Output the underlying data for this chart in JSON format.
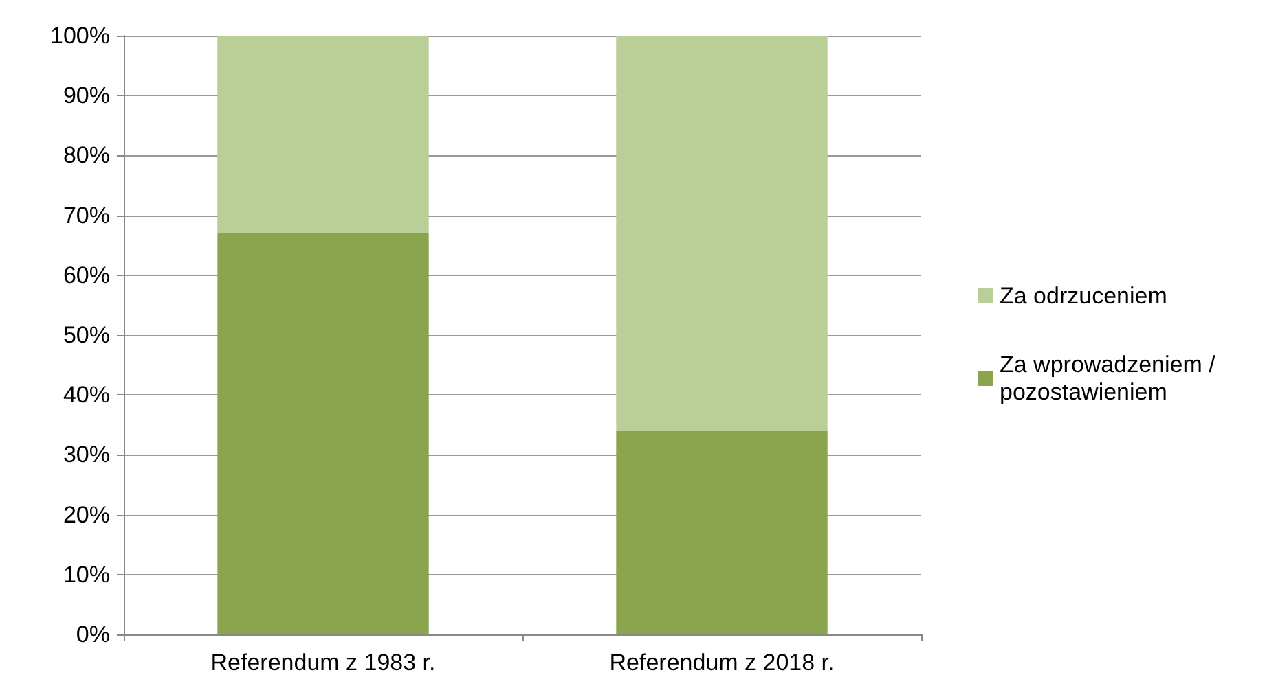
{
  "chart_data": {
    "type": "bar",
    "stacked": true,
    "categories": [
      "Referendum z 1983 r.",
      "Referendum z 2018 r."
    ],
    "series": [
      {
        "name": "Za wprowadzeniem /pozostawieniem",
        "color": "#8aa54e",
        "values": [
          67,
          34
        ]
      },
      {
        "name": "Za odrzuceniem",
        "color": "#bace97",
        "values": [
          33,
          66
        ]
      }
    ],
    "ylim": [
      0,
      100
    ],
    "yticks": [
      {
        "value": 0,
        "label": "0%"
      },
      {
        "value": 10,
        "label": "10%"
      },
      {
        "value": 20,
        "label": "20%"
      },
      {
        "value": 30,
        "label": "30%"
      },
      {
        "value": 40,
        "label": "40%"
      },
      {
        "value": 50,
        "label": "50%"
      },
      {
        "value": 60,
        "label": "60%"
      },
      {
        "value": 70,
        "label": "70%"
      },
      {
        "value": 80,
        "label": "80%"
      },
      {
        "value": 90,
        "label": "90%"
      },
      {
        "value": 100,
        "label": "100%"
      }
    ],
    "grid": "y",
    "legend": "right"
  }
}
